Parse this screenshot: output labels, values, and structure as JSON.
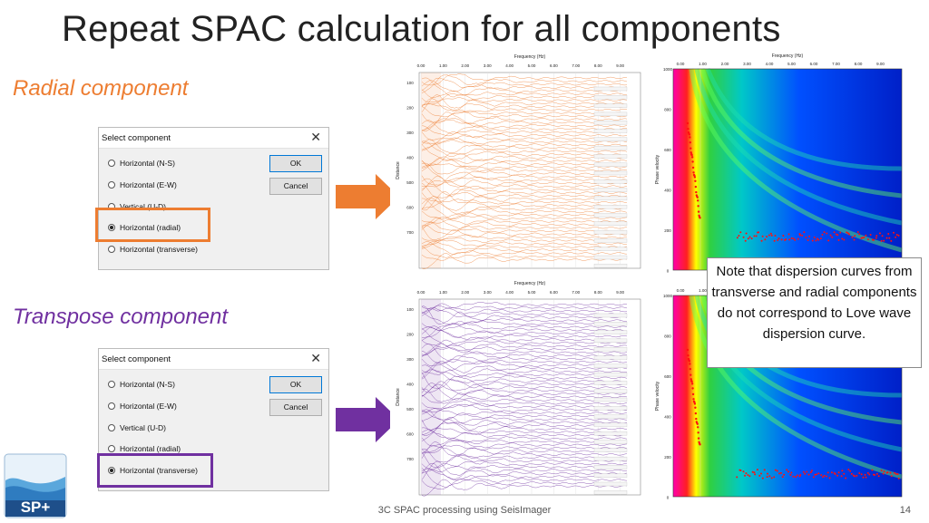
{
  "slide": {
    "title": "Repeat SPAC calculation for all components",
    "footer": "3C SPAC processing using SeisImager",
    "page_number": "14",
    "note": "Note that dispersion curves from transverse and radial components do not correspond to Love wave dispersion curve."
  },
  "colors": {
    "radial": "#ed7d31",
    "transverse": "#7030a0"
  },
  "radial": {
    "label": "Radial component",
    "selected_index": 3
  },
  "transverse": {
    "label": "Transpose component",
    "selected_index": 4
  },
  "dialog": {
    "title": "Select component",
    "close_glyph": "✕",
    "options": [
      "Horizontal (N-S)",
      "Horizontal (E-W)",
      "Vertical (U-D)",
      "Horizontal (radial)",
      "Horizontal (transverse)"
    ],
    "ok_label": "OK",
    "cancel_label": "Cancel"
  },
  "spac_plot": {
    "x_title": "Frequency (Hz)",
    "y_title": "Distance",
    "x_ticks": [
      "0.00",
      "1.00",
      "2.00",
      "3.00",
      "4.00",
      "5.00",
      "6.00",
      "7.00",
      "8.00",
      "9.00"
    ],
    "y_ticks": [
      "100",
      "200",
      "300",
      "400",
      "500",
      "600",
      "700"
    ]
  },
  "dispersion_plot": {
    "x_title": "Frequency (Hz)",
    "y_title": "Phase velocity",
    "x_ticks": [
      "0.00",
      "1.00",
      "2.00",
      "3.00",
      "4.00",
      "5.00",
      "6.00",
      "7.00",
      "8.00",
      "9.00"
    ],
    "y_ticks": [
      "1000",
      "800",
      "600",
      "400",
      "200",
      "0"
    ]
  },
  "logo": {
    "text": "SP+"
  }
}
